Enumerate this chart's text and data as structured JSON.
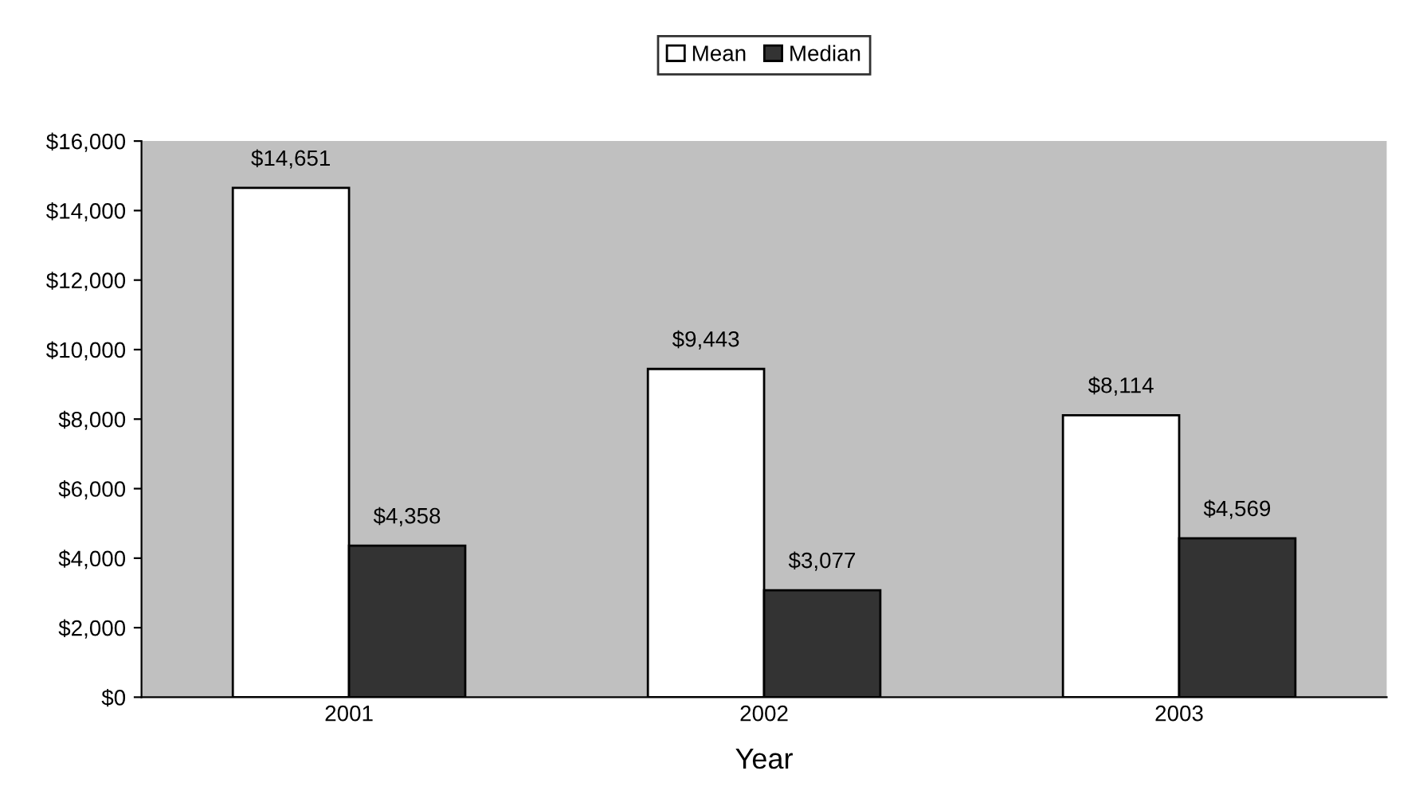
{
  "chart_data": {
    "type": "bar",
    "xlabel": "Year",
    "categories": [
      "2001",
      "2002",
      "2003"
    ],
    "series": [
      {
        "name": "Mean",
        "color": "#ffffff",
        "values": [
          14651,
          9443,
          8114
        ],
        "value_labels": [
          "$14,651",
          "$9,443",
          "$8,114"
        ]
      },
      {
        "name": "Median",
        "color": "#333333",
        "values": [
          4358,
          3077,
          4569
        ],
        "value_labels": [
          "$4,358",
          "$3,077",
          "$4,569"
        ]
      }
    ],
    "ylim": [
      0,
      16000
    ],
    "yticks": [
      {
        "value": 0,
        "label": "$0"
      },
      {
        "value": 2000,
        "label": "$2,000"
      },
      {
        "value": 4000,
        "label": "$4,000"
      },
      {
        "value": 6000,
        "label": "$6,000"
      },
      {
        "value": 8000,
        "label": "$8,000"
      },
      {
        "value": 10000,
        "label": "$10,000"
      },
      {
        "value": 12000,
        "label": "$12,000"
      },
      {
        "value": 14000,
        "label": "$14,000"
      },
      {
        "value": 16000,
        "label": "$16,000"
      }
    ],
    "legend": "top",
    "grid": false
  }
}
